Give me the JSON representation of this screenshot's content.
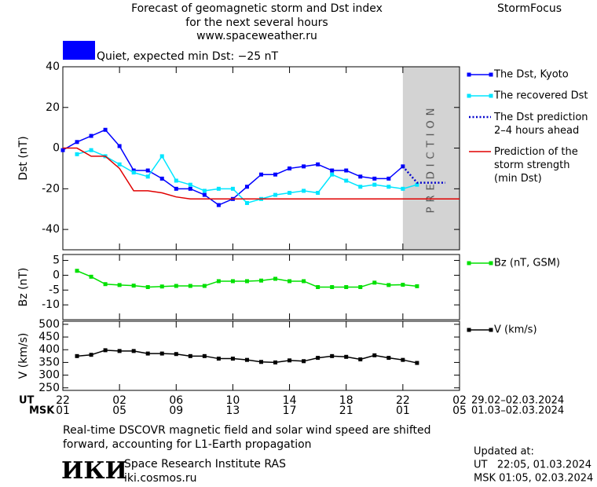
{
  "header": {
    "title": "Forecast of geomagnetic storm and Dst index",
    "subtitle": "for the next several hours",
    "url": "www.spaceweather.ru",
    "brand": "StormFocus"
  },
  "status": {
    "label": "Quiet, expected min Dst: −25 nT",
    "color": "#0000ff"
  },
  "chart_data": [
    {
      "type": "line",
      "y_label": "Dst (nT)",
      "xlim": [
        0,
        28
      ],
      "xticks": [
        0,
        4,
        8,
        12,
        16,
        20,
        24,
        28
      ],
      "ylim": [
        -50,
        40
      ],
      "yticks": [
        -40,
        -20,
        0,
        20,
        40
      ],
      "shade": {
        "x": [
          24,
          28
        ],
        "label": "PREDICTION",
        "color": "#d3d3d3"
      },
      "series": [
        {
          "name": "The Dst, Kyoto",
          "color": "#0000ff",
          "marker": "square",
          "style": "solid",
          "x": [
            0,
            1,
            2,
            3,
            4,
            5,
            6,
            7,
            8,
            9,
            10,
            11,
            12,
            13,
            14,
            15,
            16,
            17,
            18,
            19,
            20,
            21,
            22,
            23,
            24
          ],
          "values": [
            -1,
            3,
            6,
            9,
            1,
            -11,
            -11,
            -15,
            -20,
            -20,
            -23,
            -28,
            -25,
            -19,
            -13,
            -13,
            -10,
            -9,
            -8,
            -11,
            -11,
            -14,
            -15,
            -15,
            -9
          ]
        },
        {
          "name": "The recovered Dst",
          "color": "#00e5ff",
          "marker": "square",
          "style": "solid",
          "x": [
            1,
            2,
            3,
            4,
            5,
            6,
            7,
            8,
            9,
            10,
            11,
            12,
            13,
            14,
            15,
            16,
            17,
            18,
            19,
            20,
            21,
            22,
            23,
            24,
            25
          ],
          "values": [
            -3,
            -1,
            -4,
            -8,
            -12,
            -14,
            -4,
            -16,
            -18,
            -21,
            -20,
            -20,
            -27,
            -25,
            -23,
            -22,
            -21,
            -22,
            -13,
            -16,
            -19,
            -18,
            -19,
            -20,
            -18
          ]
        },
        {
          "name": "The Dst prediction\n2–4 hours ahead",
          "color": "#0000cc",
          "marker": "none",
          "style": "dotted",
          "x": [
            24,
            25,
            27
          ],
          "values": [
            -9,
            -17,
            -17
          ]
        },
        {
          "name": "Prediction of the\nstorm strength\n(min Dst)",
          "color": "#e00000",
          "marker": "none",
          "style": "solid",
          "x": [
            0,
            1,
            2,
            3,
            4,
            5,
            6,
            7,
            8,
            9,
            28
          ],
          "values": [
            0,
            0,
            -4,
            -4,
            -10,
            -21,
            -21,
            -22,
            -24,
            -25,
            -25
          ]
        }
      ]
    },
    {
      "type": "line",
      "y_label": "Bz (nT)",
      "xlim": [
        0,
        28
      ],
      "xticks": [
        0,
        4,
        8,
        12,
        16,
        20,
        24,
        28
      ],
      "ylim": [
        -15,
        7
      ],
      "yticks": [
        -10,
        -5,
        0,
        5
      ],
      "series": [
        {
          "name": "Bz (nT, GSM)",
          "color": "#00e000",
          "marker": "square",
          "style": "solid",
          "x": [
            1,
            2,
            3,
            4,
            5,
            6,
            7,
            8,
            9,
            10,
            11,
            12,
            13,
            14,
            15,
            16,
            17,
            18,
            19,
            20,
            21,
            22,
            23,
            24,
            25
          ],
          "values": [
            1.5,
            -0.5,
            -3,
            -3.3,
            -3.5,
            -4,
            -3.8,
            -3.6,
            -3.6,
            -3.6,
            -2,
            -2,
            -2,
            -1.8,
            -1.2,
            -2,
            -2,
            -4,
            -4,
            -4,
            -4,
            -2.5,
            -3.3,
            -3.2,
            -3.7
          ]
        }
      ]
    },
    {
      "type": "line",
      "y_label": "V (km/s)",
      "xlim": [
        0,
        28
      ],
      "xticks": [
        {
          "value": 0,
          "label": "22"
        },
        {
          "value": 4,
          "label": "02"
        },
        {
          "value": 8,
          "label": "06"
        },
        {
          "value": 12,
          "label": "10"
        },
        {
          "value": 16,
          "label": "14"
        },
        {
          "value": 20,
          "label": "18"
        },
        {
          "value": 24,
          "label": "22"
        },
        {
          "value": 28,
          "label": "02"
        }
      ],
      "x_label": "UT",
      "x_dates": "29.02–02.03.2024",
      "x2_label": "MSK",
      "x2_ticks": [
        "01",
        "05",
        "09",
        "13",
        "17",
        "21",
        "01",
        "05"
      ],
      "x2_dates": "01.03–02.03.2024",
      "ylim": [
        240,
        512
      ],
      "yticks": [
        250,
        300,
        350,
        400,
        450,
        500
      ],
      "series": [
        {
          "name": "V (km/s)",
          "color": "#000000",
          "marker": "square",
          "style": "solid",
          "x": [
            1,
            2,
            3,
            4,
            5,
            6,
            7,
            8,
            9,
            10,
            11,
            12,
            13,
            14,
            15,
            16,
            17,
            18,
            19,
            20,
            21,
            22,
            23,
            24,
            25
          ],
          "values": [
            375,
            380,
            398,
            395,
            395,
            385,
            385,
            383,
            375,
            375,
            365,
            365,
            360,
            352,
            350,
            358,
            355,
            368,
            375,
            372,
            362,
            378,
            368,
            360,
            348
          ]
        }
      ]
    }
  ],
  "footer": {
    "note": "Real-time DSCOVR magnetic field and solar wind speed are shifted\nforward, accounting for L1-Earth propagation",
    "logo": "ИКИ",
    "institute": "Space Research Institute RAS",
    "site": "iki.cosmos.ru",
    "updated": "Updated at:",
    "updated_ut": "UT   22:05, 01.03.2024",
    "updated_msk": "MSK 01:05, 02.03.2024"
  }
}
